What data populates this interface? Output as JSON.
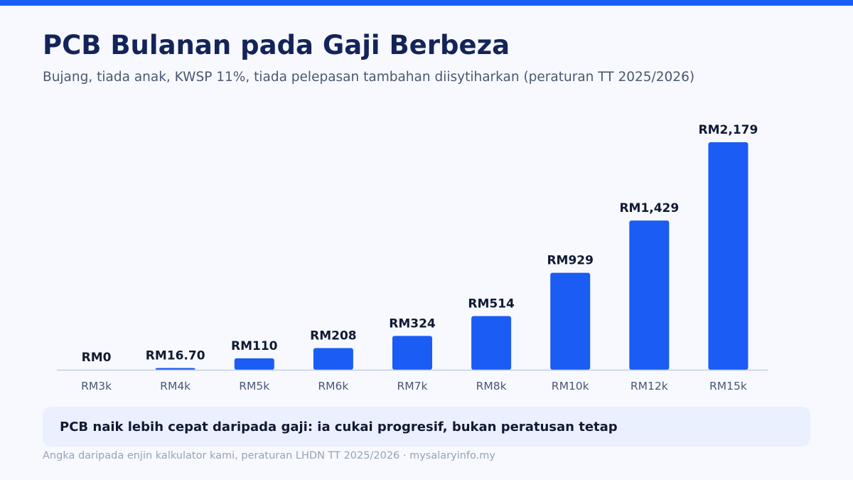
{
  "header": {
    "title": "PCB Bulanan pada Gaji Berbeza",
    "subtitle": "Bujang, tiada anak, KWSP 11%, tiada pelepasan tambahan diisytiharkan (peraturan TT 2025/2026)"
  },
  "colors": {
    "accent": "#1a5cf4",
    "title": "#14245a",
    "background": "#f7f9ff",
    "callout_background": "#eaf0fd"
  },
  "chart_data": {
    "type": "bar",
    "title": "",
    "xlabel": "",
    "ylabel": "",
    "categories": [
      "RM3k",
      "RM4k",
      "RM5k",
      "RM6k",
      "RM7k",
      "RM8k",
      "RM10k",
      "RM12k",
      "RM15k"
    ],
    "values": [
      0,
      16.7,
      110,
      208,
      324,
      514,
      929,
      1429,
      2179
    ],
    "data_labels": [
      "RM0",
      "RM16.70",
      "RM110",
      "RM208",
      "RM324",
      "RM514",
      "RM929",
      "RM1,429",
      "RM2,179"
    ],
    "ylim": [
      0,
      2179
    ],
    "grid": false,
    "legend": "none"
  },
  "callout": {
    "text": "PCB naik lebih cepat daripada gaji: ia cukai progresif, bukan peratusan tetap"
  },
  "footer": {
    "text": "Angka daripada enjin kalkulator kami, peraturan LHDN TT 2025/2026 · mysalaryinfo.my"
  }
}
